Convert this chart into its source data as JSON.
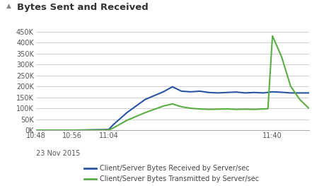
{
  "title": "Bytes Sent and Received",
  "title_fontsize": 9.5,
  "background_color": "#ffffff",
  "plot_bg_color": "#ffffff",
  "grid_color": "#d0d0d0",
  "xtick_labels": [
    "10:48",
    "10:56",
    "11:04",
    "",
    "11:40"
  ],
  "xtick_positions": [
    0,
    8,
    16,
    36,
    52
  ],
  "ylim": [
    0,
    475000
  ],
  "ytick_vals": [
    0,
    50000,
    100000,
    150000,
    200000,
    250000,
    300000,
    350000,
    400000,
    450000
  ],
  "ytick_labels": [
    "0K",
    "50K",
    "100K",
    "150K",
    "200K",
    "250K",
    "300K",
    "350K",
    "400K",
    "450K"
  ],
  "legend_labels": [
    "Client/Server Bytes Received by Server/sec",
    "Client/Server Bytes Transmitted by Server/sec"
  ],
  "blue_color": "#2955a0",
  "green_color": "#5aad45",
  "blue_x": [
    0,
    8,
    16,
    17,
    20,
    24,
    28,
    30,
    32,
    34,
    36,
    38,
    40,
    42,
    44,
    46,
    48,
    50,
    52,
    54,
    56,
    58,
    60
  ],
  "blue_y": [
    0,
    0,
    3000,
    25000,
    80000,
    140000,
    175000,
    198000,
    178000,
    175000,
    178000,
    172000,
    170000,
    172000,
    174000,
    170000,
    172000,
    170000,
    175000,
    173000,
    170000,
    170000,
    170000
  ],
  "green_x": [
    0,
    8,
    16,
    17,
    20,
    24,
    28,
    30,
    32,
    34,
    36,
    38,
    40,
    42,
    44,
    46,
    48,
    50,
    51,
    52,
    54,
    56,
    58,
    60
  ],
  "green_y": [
    0,
    0,
    1000,
    10000,
    45000,
    80000,
    110000,
    120000,
    107000,
    100000,
    97000,
    95000,
    96000,
    97000,
    95000,
    96000,
    95000,
    97000,
    98000,
    430000,
    335000,
    200000,
    140000,
    100000
  ],
  "xlim": [
    0,
    60
  ],
  "date_label": "23 Nov 2015"
}
